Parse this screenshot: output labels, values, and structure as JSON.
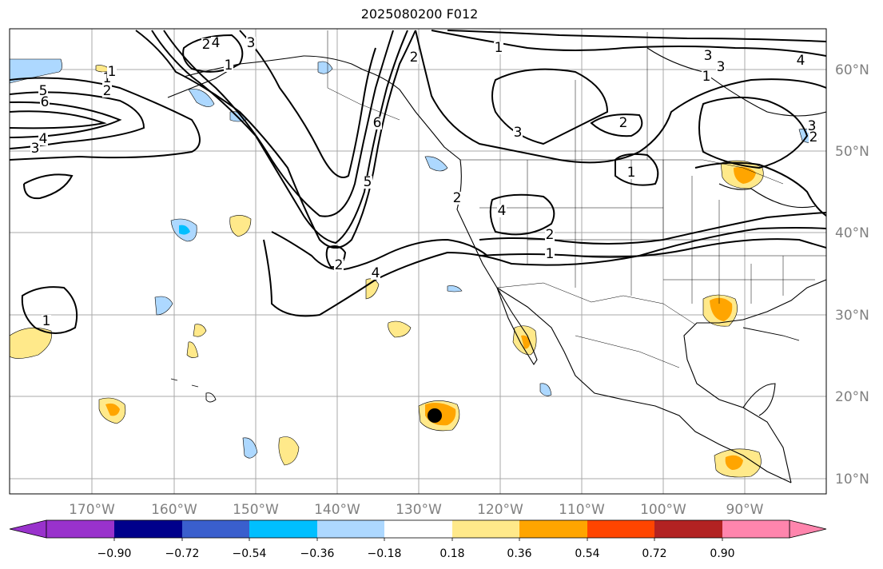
{
  "title": "2025080200 F012",
  "map": {
    "lon_ticks": [
      "170°W",
      "160°W",
      "150°W",
      "140°W",
      "130°W",
      "120°W",
      "110°W",
      "100°W",
      "90°W"
    ],
    "lat_ticks": [
      "60°N",
      "50°N",
      "40°N",
      "30°N",
      "20°N",
      "10°N"
    ],
    "contour_labels": [
      "1",
      "2",
      "3",
      "4",
      "5",
      "6",
      "1",
      "2",
      "3",
      "4",
      "5",
      "6",
      "1",
      "2",
      "3",
      "4",
      "2",
      "1",
      "1",
      "2",
      "3",
      "4",
      "1",
      "2",
      "3",
      "4",
      "1",
      "2",
      "3",
      "1",
      "2"
    ],
    "marker": "hurricane-center-dot"
  },
  "colorbar": {
    "tick_labels": [
      "−0.90",
      "−0.72",
      "−0.54",
      "−0.36",
      "−0.18",
      "0.18",
      "0.36",
      "0.54",
      "0.72",
      "0.90"
    ],
    "colors": [
      "#9932CC",
      "#00008B",
      "#3A5FCD",
      "#00BFFF",
      "#ADD8FF",
      "#FFFFFF",
      "#FFE98A",
      "#FFA500",
      "#FF4500",
      "#B22222",
      "#FF85AD"
    ]
  }
}
